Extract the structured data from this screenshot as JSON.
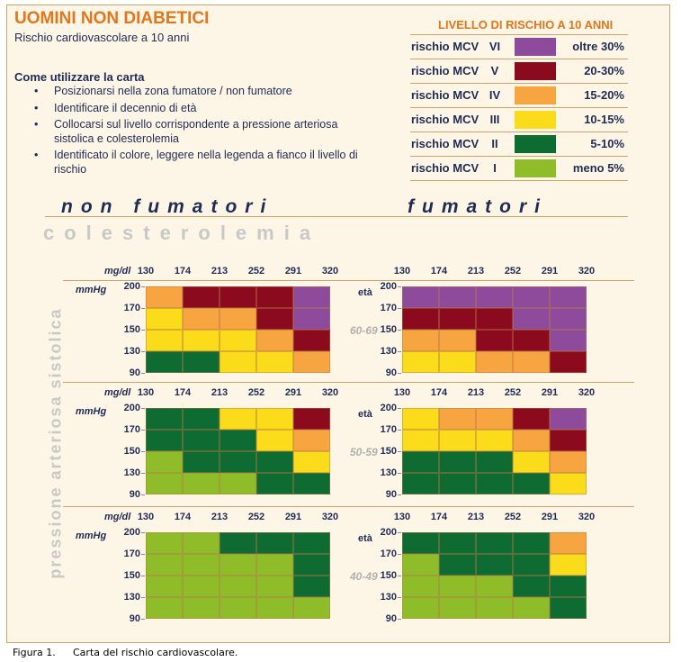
{
  "title": "UOMINI NON DIABETICI",
  "subtitle": "Rischio cardiovascolare a 10 anni",
  "how_to": {
    "title": "Come utilizzare la carta",
    "items": [
      "Posizionarsi nella zona fumatore / non fumatore",
      "Identificare il decennio di età",
      "Collocarsi sul livello corrispondente a pressione arteriosa sistolica e colesterolemia",
      "Identificato il colore, leggere nella legenda a fianco il livello di rischio"
    ]
  },
  "legend": {
    "title": "LIVELLO DI RISCHIO A 10 ANNI",
    "rows": [
      {
        "name": "rischio MCV",
        "level": "VI",
        "color": "#8e4b9b",
        "range": "oltre 30%"
      },
      {
        "name": "rischio MCV",
        "level": "V",
        "color": "#8c0a1e",
        "range": "20-30%"
      },
      {
        "name": "rischio MCV",
        "level": "IV",
        "color": "#f6a541",
        "range": "15-20%"
      },
      {
        "name": "rischio MCV",
        "level": "III",
        "color": "#fbdc1b",
        "range": "10-15%"
      },
      {
        "name": "rischio MCV",
        "level": "II",
        "color": "#0e6b31",
        "range": "5-10%"
      },
      {
        "name": "rischio MCV",
        "level": "I",
        "color": "#8fbd2a",
        "range": "meno 5%"
      }
    ]
  },
  "sections": {
    "non_smokers": "non fumatori",
    "smokers": "fumatori"
  },
  "cholesterol_label": "colesterolemia",
  "pressure_label": "pressione arteriosa sistolica",
  "axis": {
    "x_unit": "mg/dl",
    "y_unit": "mmHg",
    "x_ticks": [
      "130",
      "174",
      "213",
      "252",
      "291",
      "320"
    ],
    "y_ticks": [
      "200",
      "170",
      "150",
      "130",
      "90"
    ],
    "eta_label": "età"
  },
  "level_colors": {
    "1": "#8fbd2a",
    "2": "#0e6b31",
    "3": "#fbdc1b",
    "4": "#f6a541",
    "5": "#8c0a1e",
    "6": "#8e4b9b"
  },
  "age_groups": [
    {
      "label": "60-69",
      "non_smokers": [
        [
          4,
          5,
          5,
          5,
          6
        ],
        [
          3,
          4,
          4,
          5,
          6
        ],
        [
          3,
          3,
          3,
          4,
          5
        ],
        [
          2,
          2,
          3,
          3,
          4
        ]
      ],
      "smokers": [
        [
          6,
          6,
          6,
          6,
          6
        ],
        [
          5,
          5,
          5,
          6,
          6
        ],
        [
          4,
          4,
          5,
          5,
          6
        ],
        [
          3,
          3,
          4,
          4,
          5
        ]
      ]
    },
    {
      "label": "50-59",
      "non_smokers": [
        [
          2,
          2,
          3,
          3,
          5
        ],
        [
          2,
          2,
          2,
          3,
          4
        ],
        [
          1,
          2,
          2,
          2,
          3
        ],
        [
          1,
          1,
          1,
          2,
          2
        ]
      ],
      "smokers": [
        [
          3,
          4,
          4,
          5,
          6
        ],
        [
          3,
          3,
          3,
          4,
          5
        ],
        [
          2,
          2,
          2,
          3,
          4
        ],
        [
          2,
          2,
          2,
          2,
          3
        ]
      ]
    },
    {
      "label": "40-49",
      "non_smokers": [
        [
          1,
          1,
          2,
          2,
          2
        ],
        [
          1,
          1,
          1,
          1,
          2
        ],
        [
          1,
          1,
          1,
          1,
          2
        ],
        [
          1,
          1,
          1,
          1,
          1
        ]
      ],
      "smokers": [
        [
          2,
          2,
          2,
          2,
          4
        ],
        [
          1,
          2,
          2,
          2,
          3
        ],
        [
          1,
          1,
          1,
          2,
          2
        ],
        [
          1,
          1,
          1,
          1,
          2
        ]
      ]
    }
  ],
  "caption": {
    "label": "Figura 1.",
    "text": "Carta del rischio cardiovascolare."
  }
}
